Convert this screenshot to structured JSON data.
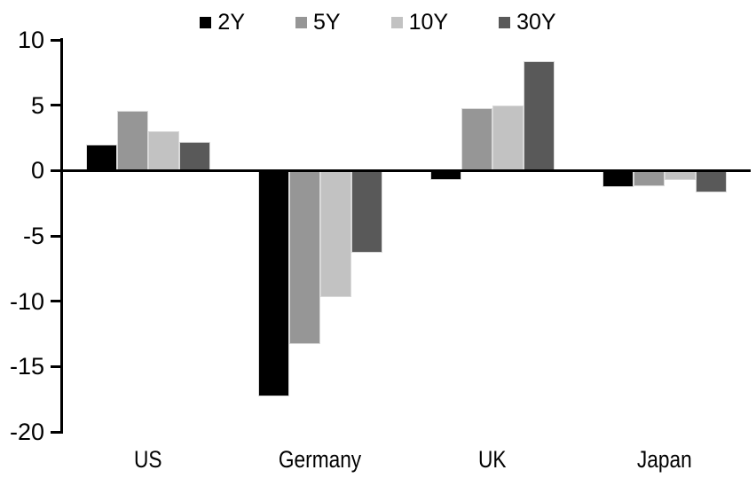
{
  "chart_data": {
    "type": "bar",
    "title": "",
    "categories": [
      "US",
      "Germany",
      "UK",
      "Japan"
    ],
    "series": [
      {
        "name": "2Y",
        "color": "#000000",
        "values": [
          2.0,
          -17.3,
          -0.7,
          -1.3
        ]
      },
      {
        "name": "5Y",
        "color": "#969696",
        "values": [
          4.6,
          -13.3,
          4.8,
          -1.2
        ]
      },
      {
        "name": "10Y",
        "color": "#C2C2C2",
        "values": [
          3.0,
          -9.7,
          5.0,
          -0.7
        ]
      },
      {
        "name": "30Y",
        "color": "#595959",
        "values": [
          2.2,
          -6.3,
          8.4,
          -1.7
        ]
      }
    ],
    "xlabel": "",
    "ylabel": "",
    "ylim": [
      -20,
      10
    ],
    "yticks": [
      10,
      5,
      0,
      -5,
      -10,
      -15,
      -20
    ],
    "legend_position": "top",
    "grid": false,
    "axis_color": "#000000",
    "background": "#FFFFFF",
    "text_color": "#000000"
  }
}
